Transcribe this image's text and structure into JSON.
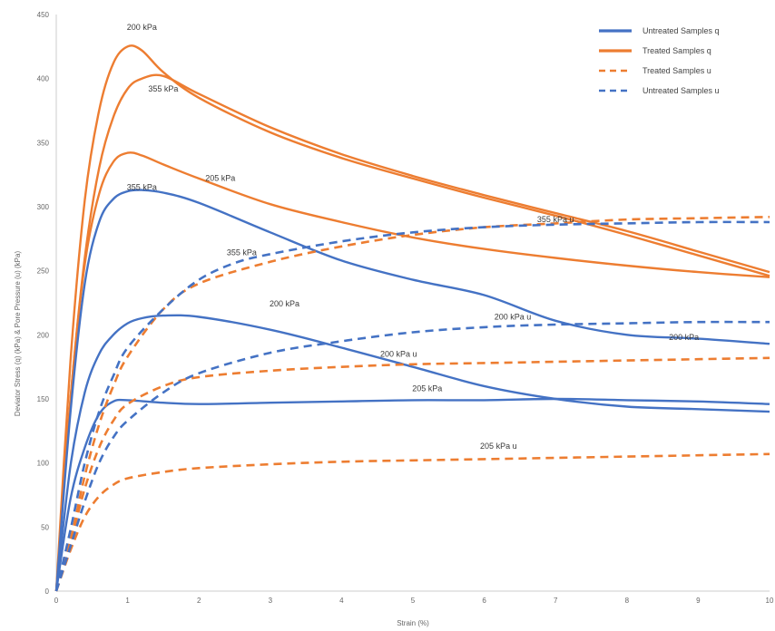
{
  "chart_data": {
    "type": "line",
    "title": "",
    "xlabel": "Strain (%)",
    "ylabel": "Deviator Stress (q) (kPa) & Pore Pressure (u) (kPa)",
    "xlim": [
      0,
      10
    ],
    "ylim": [
      0,
      450
    ],
    "x_ticks": [
      "0",
      "1",
      "2",
      "3",
      "4",
      "5",
      "6",
      "7",
      "8",
      "9",
      "10"
    ],
    "y_ticks": [
      "0",
      "50",
      "100",
      "150",
      "200",
      "250",
      "300",
      "350",
      "400",
      "450"
    ],
    "grid": false,
    "legend_position": "top-right",
    "colors": {
      "untreated": "#4472C4",
      "treated": "#ED7D31",
      "axis": "#cccccc"
    },
    "legend": [
      {
        "label": "Untreated Samples q",
        "style": "solid",
        "color": "#4472C4"
      },
      {
        "label": "Treated Samples q",
        "style": "solid",
        "color": "#ED7D31"
      },
      {
        "label": "Treated Samples u",
        "style": "dashed",
        "color": "#ED7D31"
      },
      {
        "label": "Untreated Samples u",
        "style": "dashed",
        "color": "#4472C4"
      }
    ],
    "series": [
      {
        "group": "Treated Samples q",
        "color": "#ED7D31",
        "style": "solid",
        "x": [
          0,
          0.2,
          0.4,
          0.6,
          0.8,
          1.0,
          1.2,
          1.5,
          2,
          3,
          4,
          5,
          6,
          7,
          8,
          9,
          10
        ],
        "y": [
          0,
          180,
          305,
          375,
          412,
          425,
          422,
          405,
          385,
          358,
          338,
          322,
          307,
          293,
          278,
          262,
          246
        ]
      },
      {
        "group": "Treated Samples q",
        "color": "#ED7D31",
        "style": "solid",
        "x": [
          0,
          0.2,
          0.4,
          0.6,
          0.8,
          1.0,
          1.2,
          1.5,
          2,
          3,
          4,
          5,
          6,
          7,
          8,
          9,
          10
        ],
        "y": [
          0,
          150,
          260,
          330,
          370,
          392,
          400,
          402,
          388,
          362,
          341,
          324,
          309,
          295,
          281,
          265,
          249
        ]
      },
      {
        "group": "Treated Samples q",
        "color": "#ED7D31",
        "style": "solid",
        "x": [
          0,
          0.2,
          0.4,
          0.6,
          0.8,
          1.0,
          1.2,
          1.5,
          2,
          3,
          4,
          5,
          6,
          7,
          8,
          9,
          10
        ],
        "y": [
          0,
          150,
          255,
          310,
          335,
          342,
          340,
          333,
          322,
          302,
          288,
          276,
          267,
          260,
          254,
          249,
          245
        ]
      },
      {
        "group": "Untreated Samples q",
        "color": "#4472C4",
        "style": "solid",
        "x": [
          0,
          0.2,
          0.4,
          0.6,
          0.8,
          1.0,
          1.2,
          1.5,
          2,
          3,
          4,
          5,
          6,
          7,
          8,
          9,
          10
        ],
        "y": [
          0,
          140,
          240,
          288,
          306,
          312,
          313,
          311,
          303,
          280,
          258,
          243,
          231,
          211,
          200,
          197,
          193
        ]
      },
      {
        "group": "Untreated Samples q",
        "color": "#4472C4",
        "style": "solid",
        "x": [
          0,
          0.2,
          0.4,
          0.6,
          0.8,
          1.0,
          1.2,
          1.5,
          2,
          3,
          4,
          5,
          6,
          7,
          8,
          9,
          10
        ],
        "y": [
          0,
          98,
          155,
          185,
          200,
          209,
          213,
          215,
          214,
          204,
          190,
          175,
          160,
          150,
          144,
          142,
          140
        ]
      },
      {
        "group": "Untreated Samples q",
        "color": "#4472C4",
        "style": "solid",
        "x": [
          0,
          0.2,
          0.4,
          0.6,
          0.8,
          1.0,
          1.5,
          2,
          3,
          4,
          5,
          6,
          7,
          8,
          9,
          10
        ],
        "y": [
          0,
          72,
          112,
          138,
          148,
          149,
          147,
          146,
          147,
          148,
          149,
          149,
          150,
          149,
          148,
          146
        ]
      },
      {
        "group": "Treated Samples u",
        "color": "#ED7D31",
        "style": "dashed",
        "x": [
          0,
          0.2,
          0.4,
          0.6,
          0.8,
          1.0,
          1.5,
          2,
          3,
          4,
          5,
          6,
          7,
          8,
          9,
          10
        ],
        "y": [
          0,
          40,
          90,
          130,
          160,
          183,
          220,
          240,
          257,
          269,
          278,
          284,
          287,
          290,
          291,
          292
        ]
      },
      {
        "group": "Treated Samples u",
        "color": "#ED7D31",
        "style": "dashed",
        "x": [
          0,
          0.2,
          0.4,
          0.6,
          0.8,
          1.0,
          1.5,
          2,
          3,
          4,
          5,
          6,
          7,
          8,
          9,
          10
        ],
        "y": [
          0,
          38,
          80,
          112,
          133,
          146,
          160,
          167,
          172,
          175,
          177,
          178,
          179,
          180,
          181,
          182
        ]
      },
      {
        "group": "Treated Samples u",
        "color": "#ED7D31",
        "style": "dashed",
        "x": [
          0,
          0.2,
          0.4,
          0.6,
          0.8,
          1.0,
          1.5,
          2,
          3,
          4,
          5,
          6,
          7,
          8,
          9,
          10
        ],
        "y": [
          0,
          32,
          58,
          74,
          83,
          88,
          93,
          96,
          99,
          101,
          102,
          103,
          104,
          105,
          106,
          107
        ]
      },
      {
        "group": "Untreated Samples u",
        "color": "#4472C4",
        "style": "dashed",
        "x": [
          0,
          0.2,
          0.4,
          0.6,
          0.8,
          1.0,
          1.5,
          2,
          2.5,
          3,
          4,
          5,
          6,
          7,
          8,
          9,
          10
        ],
        "y": [
          0,
          48,
          100,
          140,
          168,
          190,
          220,
          243,
          256,
          263,
          273,
          280,
          284,
          286,
          287,
          288,
          288
        ]
      },
      {
        "group": "Untreated Samples u",
        "color": "#4472C4",
        "style": "dashed",
        "x": [
          0,
          0.2,
          0.4,
          0.6,
          0.8,
          1.0,
          1.5,
          2,
          3,
          4,
          5,
          6,
          7,
          8,
          9,
          10
        ],
        "y": [
          0,
          35,
          70,
          100,
          120,
          133,
          155,
          170,
          186,
          195,
          202,
          206,
          208,
          209,
          210,
          210
        ]
      }
    ],
    "annotations": [
      {
        "text": "200 kPa",
        "x": 1.2,
        "y": 438
      },
      {
        "text": "355 kPa",
        "x": 1.5,
        "y": 390
      },
      {
        "text": "205 kPa",
        "x": 2.3,
        "y": 320
      },
      {
        "text": "355 kPa",
        "x": 1.2,
        "y": 313
      },
      {
        "text": "355 kPa",
        "x": 2.6,
        "y": 262
      },
      {
        "text": "355 kPa u",
        "x": 7.0,
        "y": 288
      },
      {
        "text": "200 kPa",
        "x": 3.2,
        "y": 222
      },
      {
        "text": "200 kPa u",
        "x": 6.4,
        "y": 212
      },
      {
        "text": "200 kPa",
        "x": 8.8,
        "y": 196
      },
      {
        "text": "200 kPa u",
        "x": 4.8,
        "y": 183
      },
      {
        "text": "205 kPa",
        "x": 5.2,
        "y": 156
      },
      {
        "text": "205 kPa u",
        "x": 6.2,
        "y": 111
      }
    ]
  }
}
